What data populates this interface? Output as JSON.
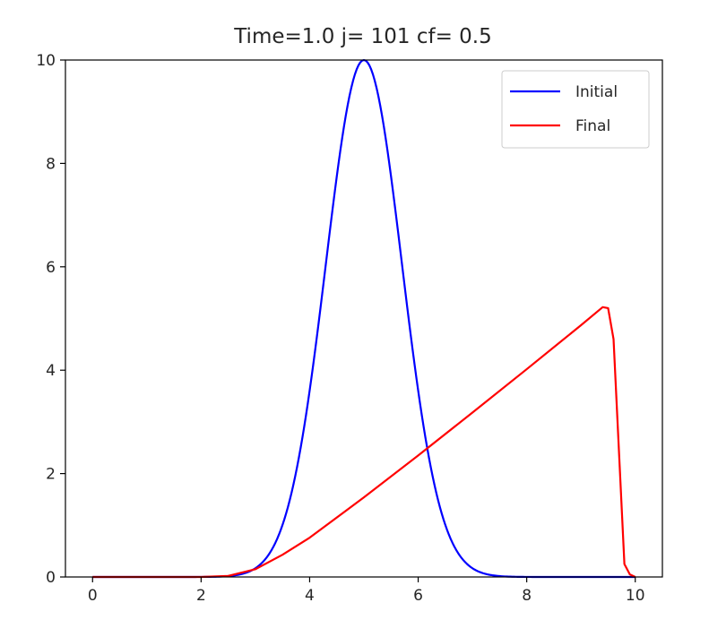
{
  "chart_data": {
    "type": "line",
    "title": "Time=1.0  j= 101  cf= 0.5",
    "xlabel": "",
    "ylabel": "",
    "xlim": [
      -0.5,
      10.5
    ],
    "ylim": [
      0,
      10
    ],
    "xticks": [
      0,
      2,
      4,
      6,
      8,
      10
    ],
    "yticks": [
      0,
      2,
      4,
      6,
      8,
      10
    ],
    "xtick_labels": [
      "0",
      "2",
      "4",
      "6",
      "8",
      "10"
    ],
    "ytick_labels": [
      "0",
      "2",
      "4",
      "6",
      "8",
      "10"
    ],
    "grid": false,
    "legend_position": "top-right",
    "series": [
      {
        "name": "Initial",
        "color": "#0000ff",
        "x": [
          0.0,
          2.0,
          2.5,
          3.0,
          3.5,
          4.0,
          4.5,
          4.75,
          5.0,
          5.25,
          5.5,
          6.0,
          6.5,
          7.0,
          7.5,
          8.0,
          10.0
        ],
        "y": [
          0.0,
          0.0,
          0.04,
          0.18,
          1.05,
          3.68,
          7.79,
          9.39,
          10.0,
          9.39,
          7.79,
          3.68,
          1.05,
          0.18,
          0.04,
          0.0,
          0.0
        ]
      },
      {
        "name": "Final",
        "color": "#ff0000",
        "x": [
          0.0,
          2.0,
          2.5,
          3.0,
          3.5,
          4.0,
          5.0,
          6.0,
          7.0,
          8.0,
          9.0,
          9.4,
          9.5,
          9.6,
          9.8,
          9.9,
          10.0
        ],
        "y": [
          0.0,
          0.0,
          0.02,
          0.15,
          0.43,
          0.76,
          1.54,
          2.35,
          3.18,
          4.02,
          4.87,
          5.22,
          5.2,
          4.6,
          0.25,
          0.05,
          0.0
        ]
      }
    ]
  }
}
